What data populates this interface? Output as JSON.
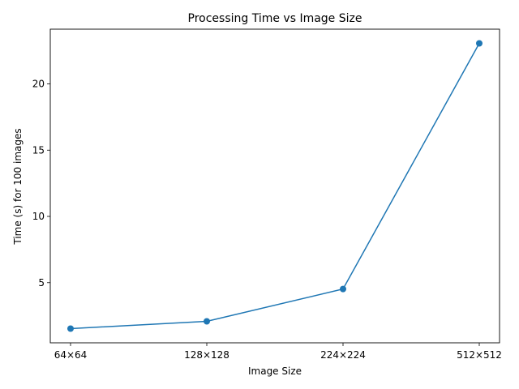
{
  "chart_data": {
    "type": "line",
    "title": "Processing Time vs Image Size",
    "xlabel": "Image Size",
    "ylabel": "Time (s) for 100 images",
    "categories": [
      "64×64",
      "128×128",
      "224×224",
      "512×512"
    ],
    "values": [
      1.53,
      2.08,
      4.52,
      23.06
    ],
    "ylim": [
      0.46,
      24.13
    ],
    "yticks": [
      5,
      10,
      15,
      20
    ],
    "grid": false,
    "legend": "none",
    "line_color": "#1f77b4",
    "marker": "circle"
  }
}
